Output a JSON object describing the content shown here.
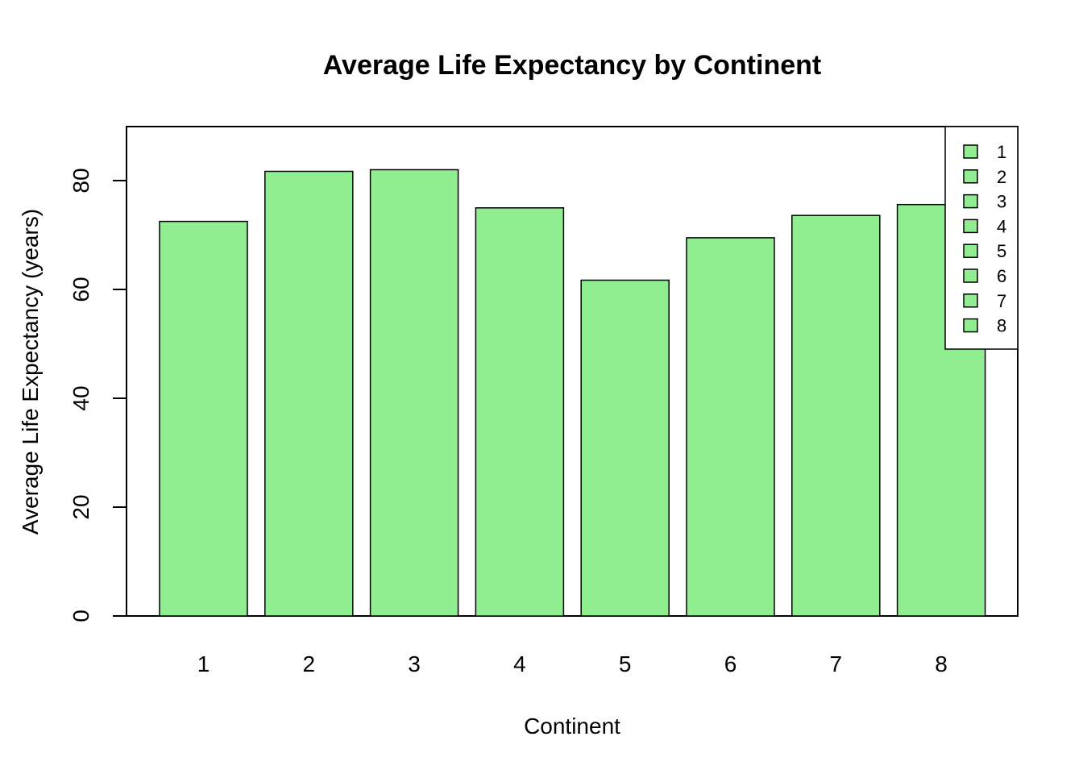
{
  "chart_data": {
    "type": "bar",
    "title": "Average Life Expectancy by Continent",
    "xlabel": "Continent",
    "ylabel": "Average Life Expectancy (years)",
    "categories": [
      "1",
      "2",
      "3",
      "4",
      "5",
      "6",
      "7",
      "8"
    ],
    "values": [
      72.5,
      81.7,
      82.0,
      75.0,
      61.7,
      69.5,
      73.6,
      75.6
    ],
    "ylim": [
      0,
      90
    ],
    "yticks": [
      0,
      20,
      40,
      60,
      80
    ],
    "bar_color": "#90EE90",
    "legend": {
      "position": "top-right",
      "entries": [
        "1",
        "2",
        "3",
        "4",
        "5",
        "6",
        "7",
        "8"
      ]
    },
    "grid": false
  }
}
